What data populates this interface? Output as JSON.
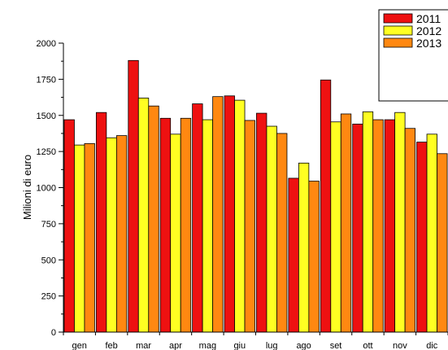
{
  "chart_data": {
    "type": "bar",
    "categories": [
      "gen",
      "feb",
      "mar",
      "apr",
      "mag",
      "giu",
      "lug",
      "ago",
      "set",
      "ott",
      "nov",
      "dic"
    ],
    "series": [
      {
        "name": "2011",
        "color": "#ee1111",
        "values": [
          1470,
          1520,
          1880,
          1480,
          1580,
          1635,
          1515,
          1065,
          1745,
          1440,
          1470,
          1315
        ]
      },
      {
        "name": "2012",
        "color": "#ffff22",
        "values": [
          1295,
          1345,
          1620,
          1370,
          1470,
          1605,
          1425,
          1170,
          1455,
          1525,
          1520,
          1370
        ]
      },
      {
        "name": "2013",
        "color": "#ff8811",
        "values": [
          1305,
          1360,
          1565,
          1480,
          1630,
          1465,
          1375,
          1045,
          1510,
          1470,
          1410,
          1235
        ]
      }
    ],
    "ylabel": "Milioni  di  euro",
    "xlabel": "",
    "ylim": [
      0,
      2000
    ],
    "yticks": [
      0,
      250,
      500,
      750,
      1000,
      1250,
      1500,
      1750,
      2000
    ],
    "grid": false,
    "legend": "top-right"
  }
}
